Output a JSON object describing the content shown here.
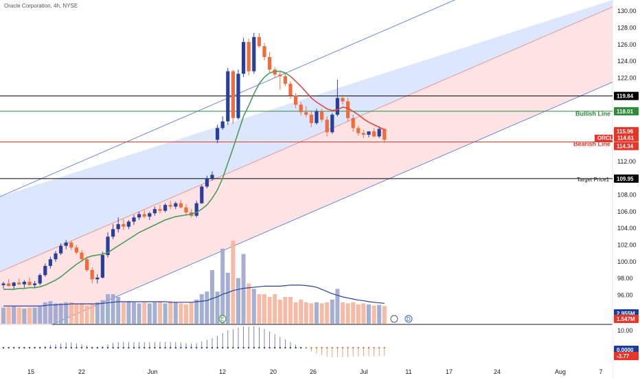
{
  "title": "Oracle Corporation, 4h, NYSE",
  "colors": {
    "up": "#2a3f9c",
    "down": "#f26b3a",
    "sma": "#4a9a5a",
    "channel_upper": "#d6e2fb",
    "channel_lower": "#fde0e0",
    "channel_line": "#4a6ee0",
    "volume_up": "#9aa6cf",
    "volume_down": "#f6b39a",
    "volume_ma": "#2a3f9c",
    "black_line": "#000000",
    "bullish": "#2e8b3a",
    "bearish": "#e8352a",
    "tag_bg_dark": "#1c2030"
  },
  "price_axis": {
    "ticks": [
      "130.00",
      "128.00",
      "126.00",
      "124.00",
      "122.00",
      "120.00",
      "112.00",
      "110.00",
      "108.00",
      "106.00",
      "104.00",
      "102.00",
      "100.00",
      "98.00",
      "96.00",
      "94.00"
    ]
  },
  "osc_axis": {
    "ticks": [
      "10.00"
    ]
  },
  "time_axis": {
    "labels": [
      "15",
      "22",
      "Jun",
      "12",
      "20",
      "26",
      "Jul",
      "11",
      "17",
      "24",
      "Aug",
      "7"
    ]
  },
  "levels": {
    "r1": {
      "price": "119.84",
      "label": ""
    },
    "bullish": {
      "price": "118.01",
      "label": "Bullish Line"
    },
    "current_high": {
      "price": "115.96"
    },
    "ticker": {
      "symbol": "ORCL",
      "price": "114.61"
    },
    "bearish": {
      "price": "114.34",
      "label": "Bearish Line"
    },
    "target": {
      "price": "109.95",
      "label": "Target Price1"
    }
  },
  "volume_tags": {
    "v1": "2.955M",
    "v2": "1.547M"
  },
  "osc_tags": {
    "o1": "0.0000",
    "o2": "-3.77"
  },
  "markers": {
    "earnings": "E",
    "dividend": "D"
  },
  "chart_data": {
    "type": "candlestick",
    "ylim": [
      92.5,
      131
    ],
    "candles": [
      [
        97.2,
        97.6,
        96.8,
        97.4
      ],
      [
        97.4,
        97.9,
        97.0,
        97.1
      ],
      [
        97.1,
        97.6,
        96.7,
        97.5
      ],
      [
        97.5,
        98.0,
        97.2,
        97.3
      ],
      [
        97.3,
        97.8,
        96.9,
        97.6
      ],
      [
        97.6,
        98.1,
        97.2,
        97.2
      ],
      [
        97.2,
        97.7,
        96.8,
        97.4
      ],
      [
        97.4,
        98.6,
        97.2,
        98.4
      ],
      [
        98.4,
        99.8,
        98.2,
        99.5
      ],
      [
        99.5,
        100.6,
        99.2,
        100.3
      ],
      [
        100.3,
        101.3,
        100.0,
        101.0
      ],
      [
        101.0,
        102.2,
        100.8,
        101.9
      ],
      [
        101.9,
        102.6,
        101.5,
        102.3
      ],
      [
        102.3,
        102.5,
        101.4,
        101.7
      ],
      [
        101.7,
        102.0,
        100.9,
        101.1
      ],
      [
        101.1,
        101.4,
        100.0,
        100.3
      ],
      [
        100.3,
        100.6,
        98.8,
        99.0
      ],
      [
        99.0,
        99.3,
        97.4,
        97.9
      ],
      [
        97.9,
        98.5,
        97.4,
        98.1
      ],
      [
        98.1,
        101.2,
        98.0,
        100.8
      ],
      [
        100.8,
        103.5,
        100.5,
        103.0
      ],
      [
        103.0,
        104.5,
        102.7,
        103.9
      ],
      [
        103.9,
        105.3,
        103.5,
        104.5
      ],
      [
        104.5,
        105.1,
        103.8,
        104.2
      ],
      [
        104.2,
        105.0,
        103.9,
        104.8
      ],
      [
        104.8,
        105.6,
        104.4,
        105.3
      ],
      [
        105.3,
        106.0,
        105.0,
        105.7
      ],
      [
        105.7,
        106.2,
        105.2,
        105.4
      ],
      [
        105.4,
        106.0,
        105.0,
        105.8
      ],
      [
        105.8,
        106.6,
        105.5,
        106.3
      ],
      [
        106.3,
        106.8,
        105.8,
        106.1
      ],
      [
        106.1,
        107.0,
        105.9,
        106.8
      ],
      [
        106.8,
        107.3,
        106.3,
        106.6
      ],
      [
        106.6,
        107.2,
        106.3,
        107.0
      ],
      [
        107.0,
        107.4,
        106.4,
        106.5
      ],
      [
        106.5,
        106.9,
        105.6,
        105.9
      ],
      [
        105.9,
        106.3,
        105.3,
        105.5
      ],
      [
        105.5,
        107.3,
        105.3,
        107.0
      ],
      [
        107.0,
        109.2,
        106.9,
        109.0
      ],
      [
        109.0,
        110.3,
        108.8,
        110.0
      ],
      [
        110.0,
        110.8,
        109.7,
        110.4
      ],
      [
        114.6,
        116.4,
        114.2,
        116.0
      ],
      [
        116.0,
        117.4,
        115.8,
        116.8
      ],
      [
        116.8,
        123.2,
        116.4,
        122.8
      ],
      [
        122.8,
        123.0,
        116.5,
        117.2
      ],
      [
        117.2,
        123.0,
        117.0,
        122.5
      ],
      [
        122.5,
        126.8,
        122.1,
        126.3
      ],
      [
        126.3,
        126.7,
        122.3,
        122.8
      ],
      [
        122.8,
        127.4,
        122.5,
        126.9
      ],
      [
        126.9,
        127.4,
        125.6,
        125.8
      ],
      [
        125.8,
        126.2,
        124.1,
        124.5
      ],
      [
        124.5,
        125.1,
        122.7,
        123.0
      ],
      [
        123.0,
        123.3,
        122.0,
        122.4
      ],
      [
        122.4,
        122.8,
        120.6,
        122.2
      ],
      [
        122.2,
        122.6,
        121.0,
        121.3
      ],
      [
        121.3,
        121.6,
        119.5,
        119.9
      ],
      [
        119.9,
        120.2,
        118.4,
        118.8
      ],
      [
        118.8,
        119.1,
        117.5,
        117.9
      ],
      [
        117.9,
        118.6,
        117.3,
        117.6
      ],
      [
        117.6,
        118.1,
        116.1,
        116.6
      ],
      [
        116.6,
        118.3,
        116.4,
        118.0
      ],
      [
        118.0,
        118.3,
        116.7,
        117.0
      ],
      [
        117.0,
        117.4,
        115.0,
        115.5
      ],
      [
        115.5,
        117.8,
        115.3,
        117.6
      ],
      [
        117.6,
        121.8,
        117.4,
        119.6
      ],
      [
        119.6,
        120.0,
        118.8,
        119.2
      ],
      [
        119.2,
        119.6,
        116.8,
        117.2
      ],
      [
        117.2,
        117.6,
        115.6,
        116.0
      ],
      [
        116.0,
        116.3,
        115.1,
        115.4
      ],
      [
        115.4,
        115.8,
        114.8,
        115.2
      ],
      [
        115.2,
        115.6,
        114.9,
        115.6
      ],
      [
        115.6,
        116.0,
        114.9,
        115.0
      ],
      [
        115.0,
        116.2,
        114.8,
        115.9
      ],
      [
        115.9,
        116.0,
        114.2,
        114.6
      ]
    ],
    "sma": [
      96.7,
      96.7,
      96.7,
      96.8,
      96.8,
      96.9,
      96.9,
      97.0,
      97.2,
      97.5,
      97.8,
      98.2,
      98.7,
      99.2,
      99.7,
      100.1,
      100.5,
      100.7,
      100.8,
      100.9,
      101.1,
      101.5,
      101.9,
      102.3,
      102.7,
      103.1,
      103.5,
      103.8,
      104.1,
      104.4,
      104.7,
      105.0,
      105.2,
      105.4,
      105.5,
      105.6,
      105.7,
      105.9,
      106.3,
      106.8,
      107.6,
      108.6,
      110.0,
      111.8,
      113.6,
      115.5,
      117.4,
      118.7,
      120.1,
      121.3,
      122.1,
      122.6,
      122.8,
      122.8,
      122.6,
      122.2,
      121.6,
      121.0,
      120.3,
      119.6,
      119.1,
      118.7,
      118.3,
      118.1,
      118.2,
      118.5,
      118.4,
      118.0,
      117.6,
      117.1,
      116.7,
      116.4,
      116.1,
      115.8
    ],
    "volume": [
      0.3,
      0.31,
      0.32,
      0.3,
      0.28,
      0.3,
      0.3,
      0.32,
      0.4,
      0.42,
      0.38,
      0.38,
      0.4,
      0.4,
      0.36,
      0.38,
      0.34,
      0.36,
      0.4,
      0.44,
      0.55,
      0.55,
      0.5,
      0.4,
      0.42,
      0.4,
      0.38,
      0.4,
      0.38,
      0.4,
      0.42,
      0.38,
      0.42,
      0.4,
      0.38,
      0.36,
      0.4,
      0.45,
      0.55,
      0.6,
      1.0,
      0.6,
      1.4,
      0.95,
      1.55,
      0.85,
      1.3,
      0.75,
      0.65,
      0.55,
      0.55,
      0.5,
      0.55,
      0.45,
      0.5,
      0.5,
      0.4,
      0.45,
      0.4,
      0.38,
      0.4,
      0.38,
      0.4,
      0.45,
      0.65,
      0.4,
      0.38,
      0.4,
      0.36,
      0.38,
      0.36,
      0.34,
      0.35,
      0.33
    ],
    "volume_ma": [
      0.33,
      0.33,
      0.33,
      0.33,
      0.33,
      0.33,
      0.33,
      0.33,
      0.34,
      0.35,
      0.35,
      0.36,
      0.36,
      0.37,
      0.37,
      0.37,
      0.37,
      0.37,
      0.37,
      0.38,
      0.39,
      0.4,
      0.41,
      0.41,
      0.41,
      0.41,
      0.41,
      0.41,
      0.41,
      0.41,
      0.41,
      0.41,
      0.4,
      0.4,
      0.4,
      0.4,
      0.4,
      0.41,
      0.42,
      0.43,
      0.47,
      0.5,
      0.55,
      0.58,
      0.62,
      0.64,
      0.66,
      0.67,
      0.68,
      0.69,
      0.7,
      0.7,
      0.7,
      0.7,
      0.71,
      0.72,
      0.72,
      0.72,
      0.71,
      0.7,
      0.68,
      0.64,
      0.6,
      0.56,
      0.53,
      0.5,
      0.48,
      0.46,
      0.44,
      0.43,
      0.41,
      0.4,
      0.39,
      0.38
    ],
    "oscillator": [
      0.3,
      0.3,
      0.4,
      0.4,
      0.3,
      0.3,
      0.4,
      0.5,
      0.8,
      1.2,
      1.6,
      2.0,
      2.4,
      2.4,
      2.0,
      1.6,
      1.0,
      0.5,
      0.4,
      0.8,
      1.6,
      2.2,
      2.5,
      2.6,
      2.6,
      2.6,
      2.6,
      2.5,
      2.5,
      2.6,
      2.7,
      2.6,
      2.6,
      2.6,
      2.4,
      2.1,
      1.9,
      2.1,
      2.8,
      3.6,
      4.4,
      5.4,
      6.6,
      7.8,
      8.4,
      9.2,
      9.8,
      9.6,
      9.8,
      9.4,
      8.6,
      7.4,
      6.2,
      5.0,
      3.8,
      2.6,
      1.4,
      0.4,
      -0.6,
      -1.6,
      -2.6,
      -3.4,
      -4.0,
      -4.4,
      -4.3,
      -4.2,
      -4.1,
      -4.0,
      -3.9,
      -3.8,
      -3.8,
      -3.8,
      -3.8,
      -3.77
    ]
  }
}
